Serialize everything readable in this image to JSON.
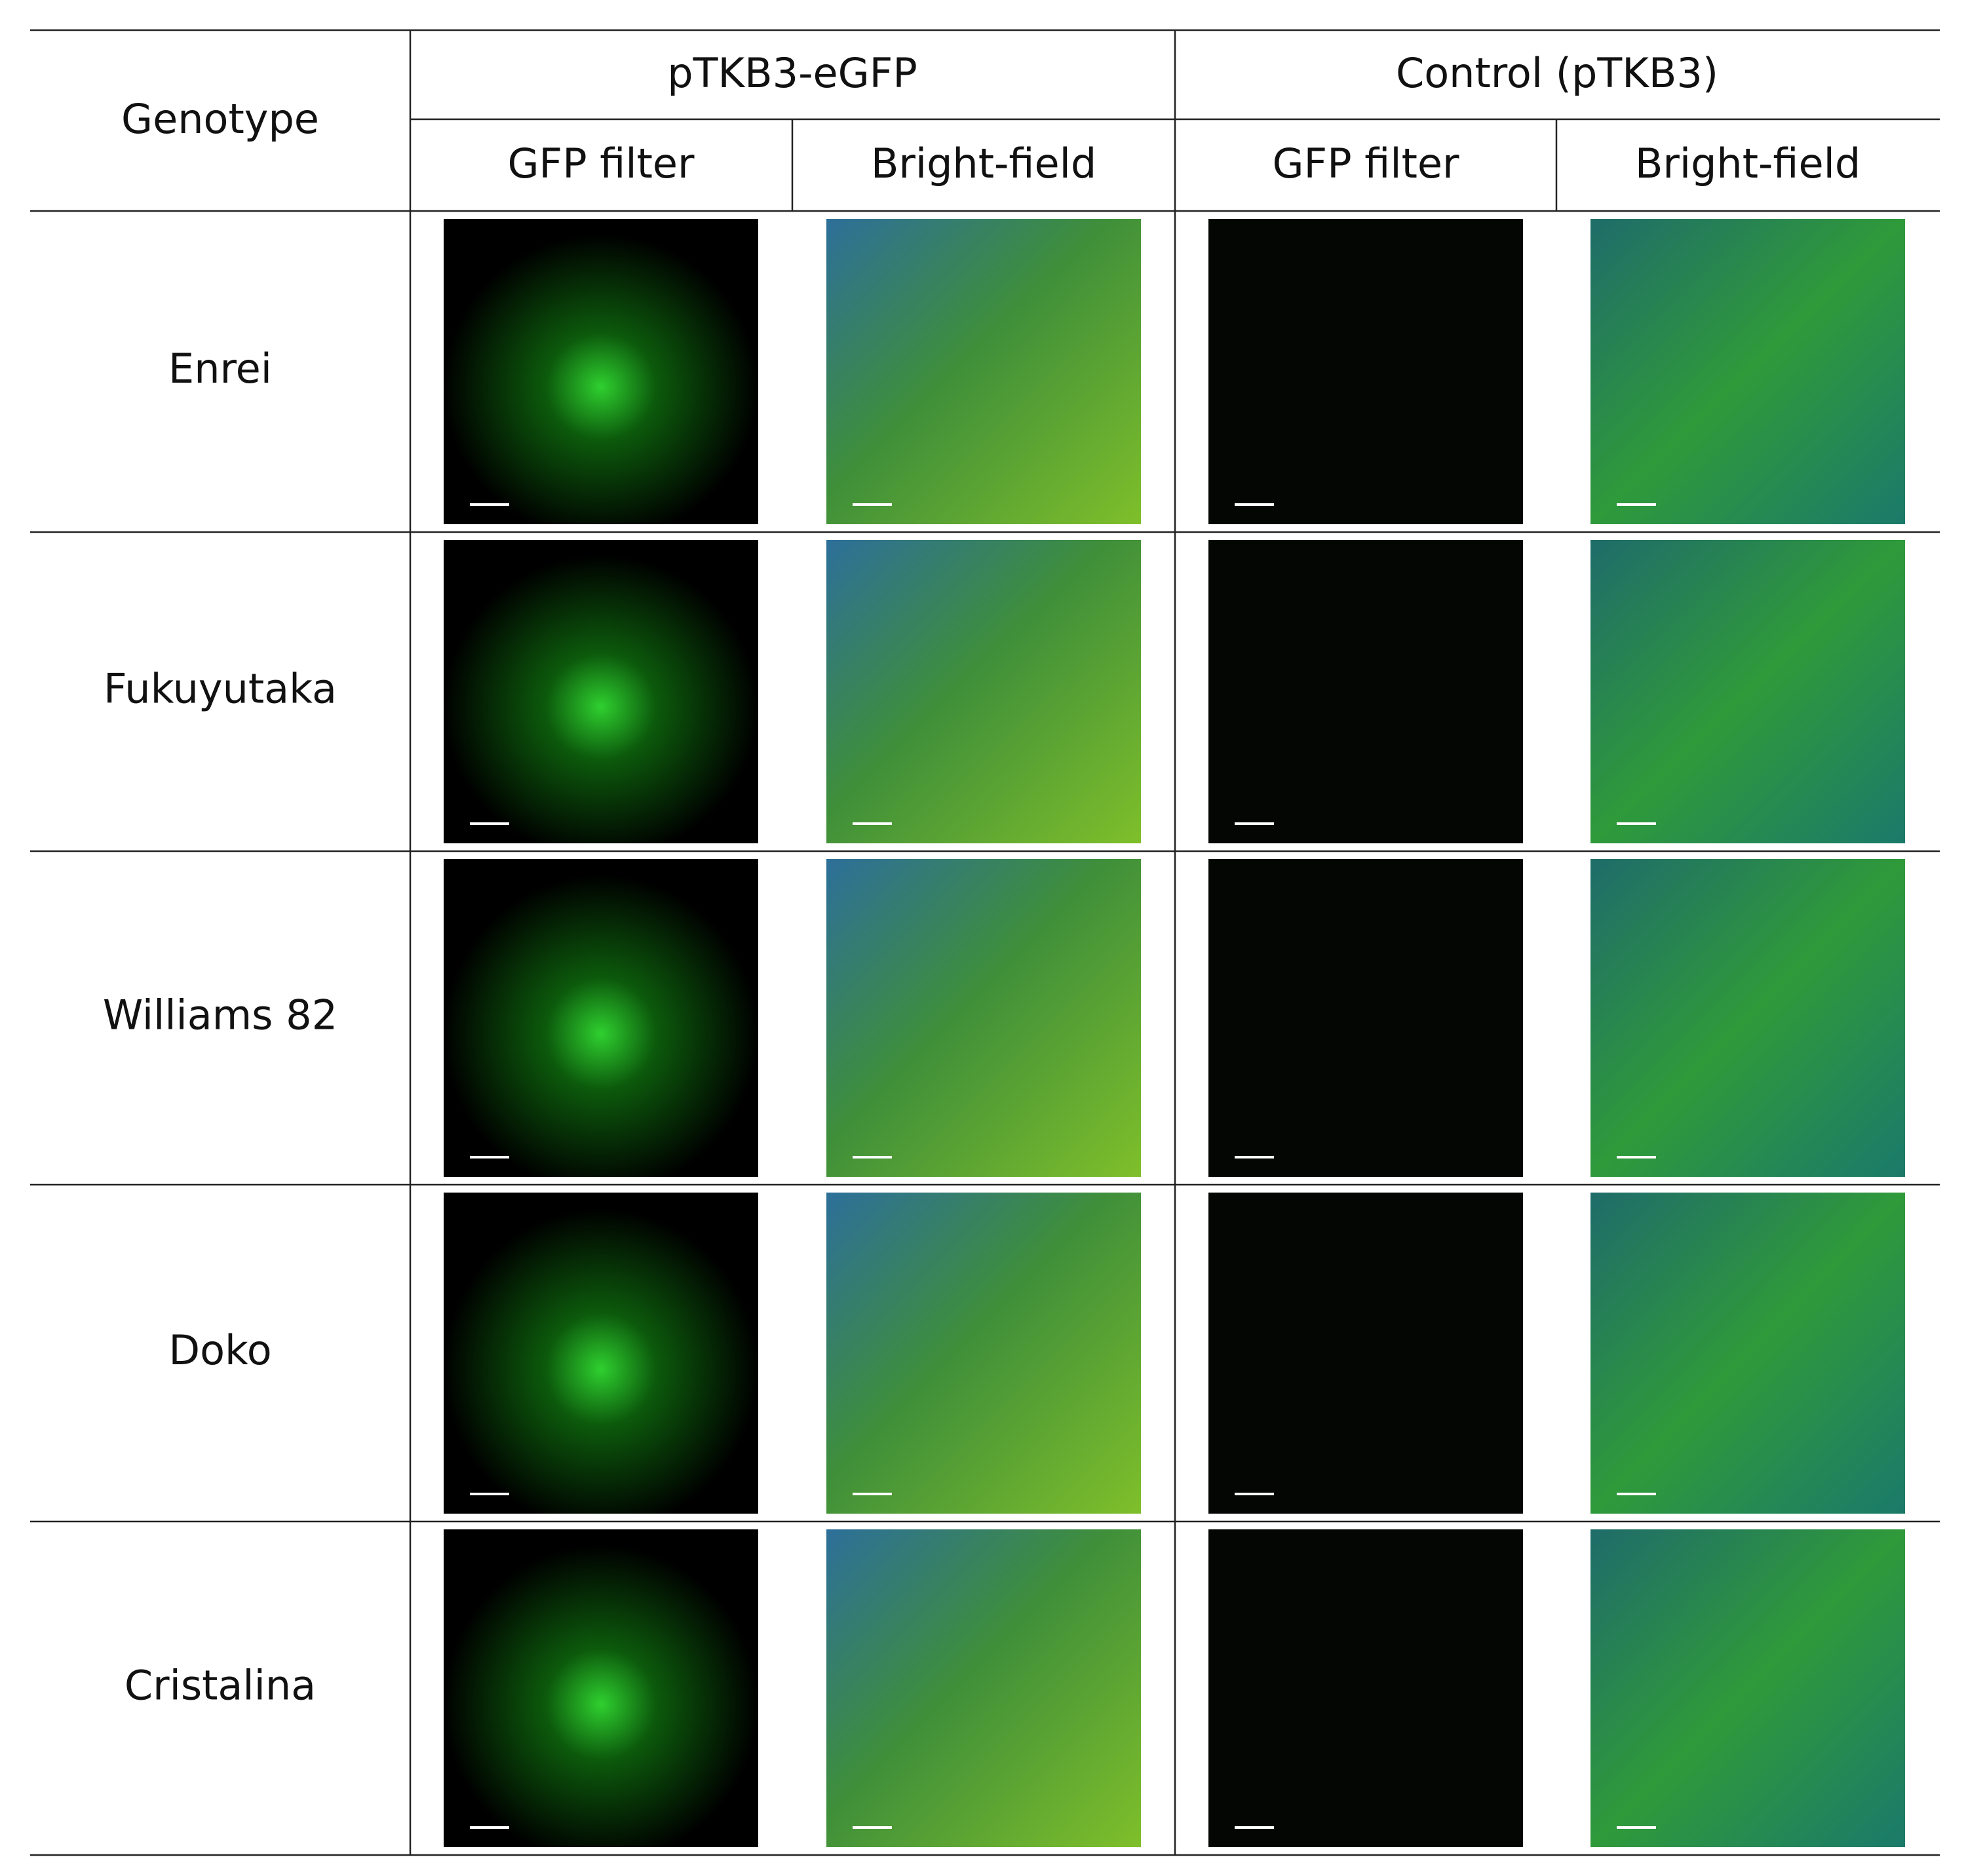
{
  "table": {
    "header": {
      "genotype": "Genotype",
      "groups": [
        "pTKB3-eGFP",
        "Control (pTKB3)"
      ],
      "subheaders": [
        "GFP filter",
        "Bright-field",
        "GFP filter",
        "Bright-field"
      ]
    },
    "rows": [
      "Enrei",
      "Fukuyutaka",
      "Williams 82",
      "Doko",
      "Cristalina"
    ]
  }
}
